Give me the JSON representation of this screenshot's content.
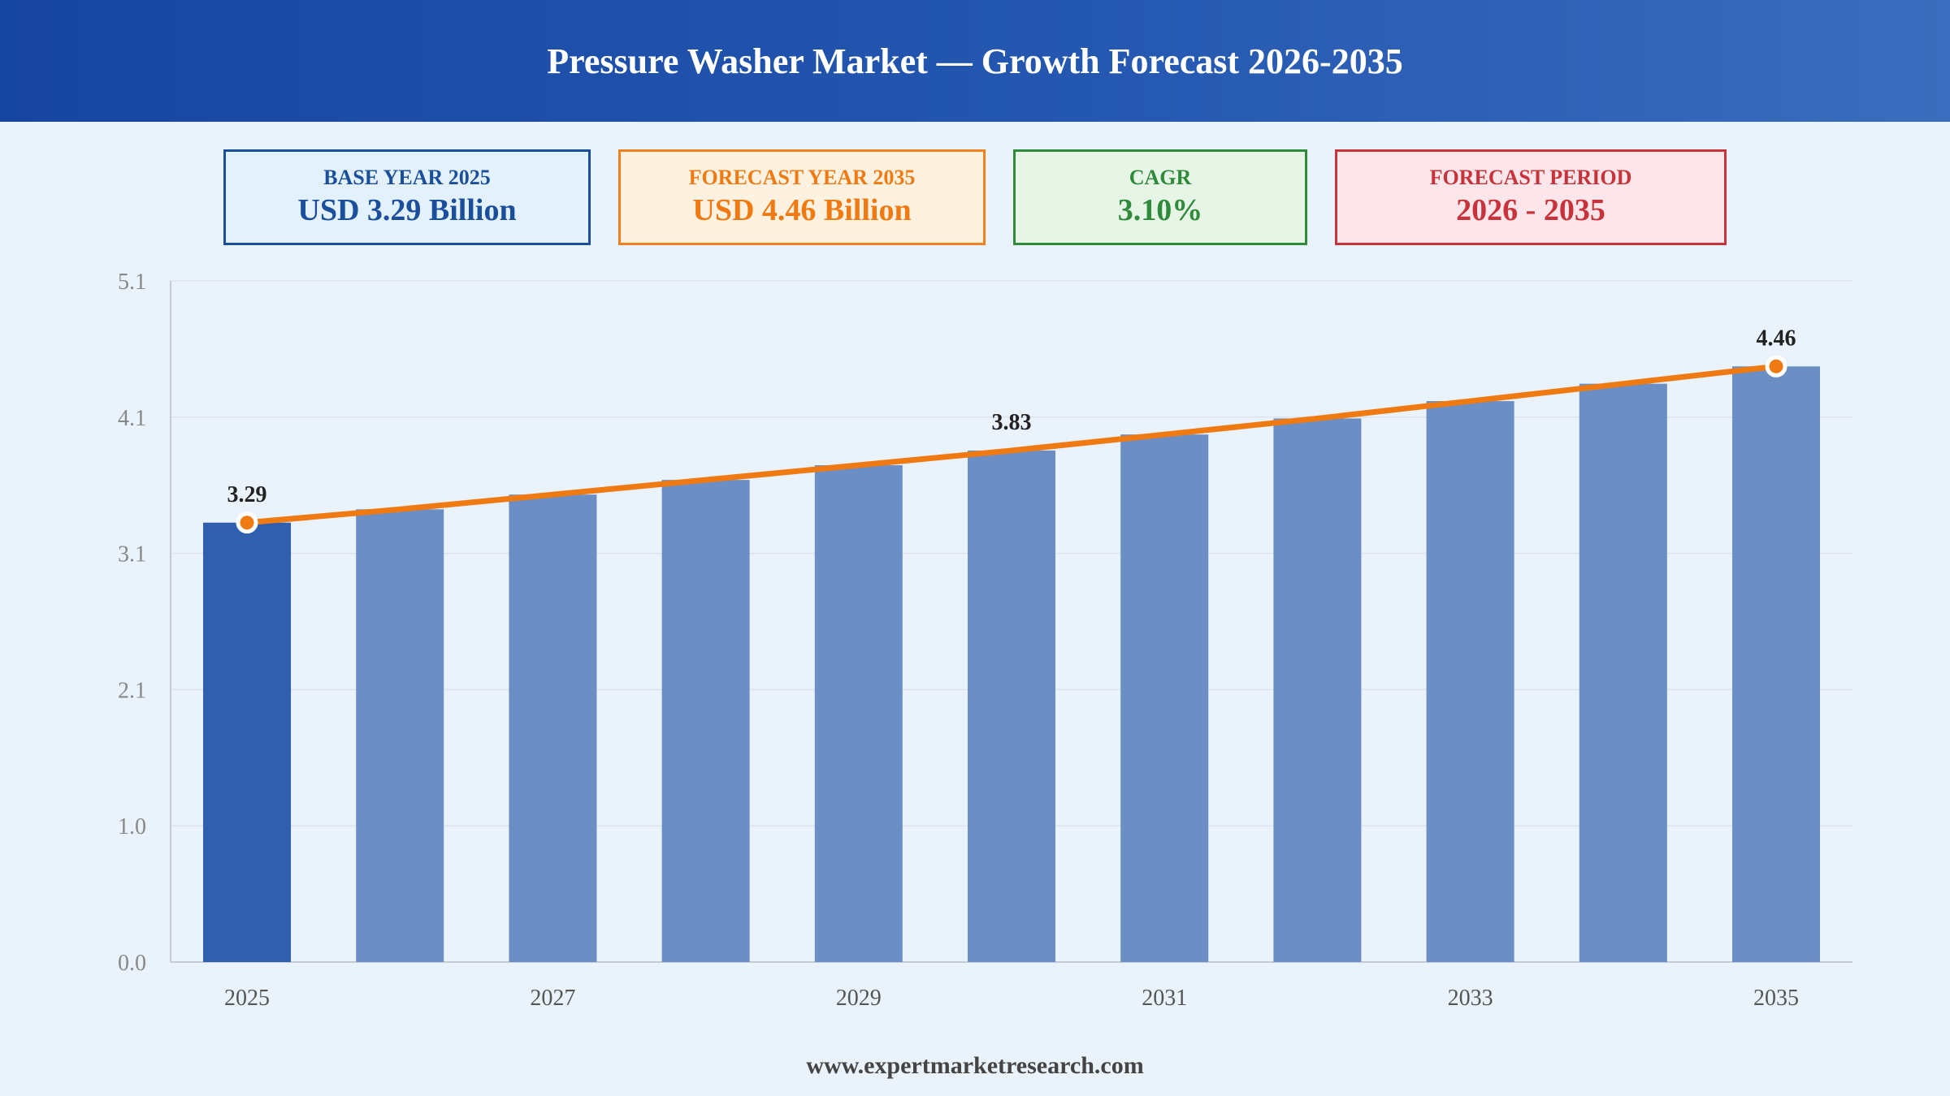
{
  "header": {
    "title": "Pressure Washer Market — Growth Forecast 2026-2035"
  },
  "cards": {
    "base": {
      "label": "BASE YEAR 2025",
      "value": "USD 3.29 Billion"
    },
    "forecast": {
      "label": "FORECAST YEAR 2035",
      "value": "USD 4.46 Billion"
    },
    "cagr": {
      "label": "CAGR",
      "value": "3.10%"
    },
    "period": {
      "label": "FORECAST PERIOD",
      "value": "2026 - 2035"
    }
  },
  "chart_data": {
    "type": "bar",
    "title": "",
    "xlabel": "",
    "ylabel": "",
    "categories": [
      "2025",
      "2026",
      "2027",
      "2028",
      "2029",
      "2030",
      "2031",
      "2032",
      "2033",
      "2034",
      "2035"
    ],
    "values": [
      3.29,
      3.39,
      3.5,
      3.61,
      3.72,
      3.83,
      3.95,
      4.07,
      4.2,
      4.33,
      4.46
    ],
    "x_tick_labels": [
      "2025",
      "2027",
      "2029",
      "2031",
      "2033",
      "2035"
    ],
    "y_tick_labels": [
      "0.0",
      "1.0",
      "2.1",
      "3.1",
      "4.1",
      "5.1"
    ],
    "ylim": [
      0,
      5.1
    ],
    "data_labels": [
      {
        "category": "2025",
        "text": "3.29"
      },
      {
        "category": "2030",
        "text": "3.83"
      },
      {
        "category": "2035",
        "text": "4.46"
      }
    ],
    "trend_line": true,
    "grid": true,
    "colors": {
      "base_bar": "#2f5fae",
      "bar": "#6b8fc4",
      "trend": "#f07a12",
      "grid": "#dde3ec",
      "axis": "#c5cbd3"
    }
  },
  "footer": {
    "url": "www.expertmarketresearch.com"
  }
}
